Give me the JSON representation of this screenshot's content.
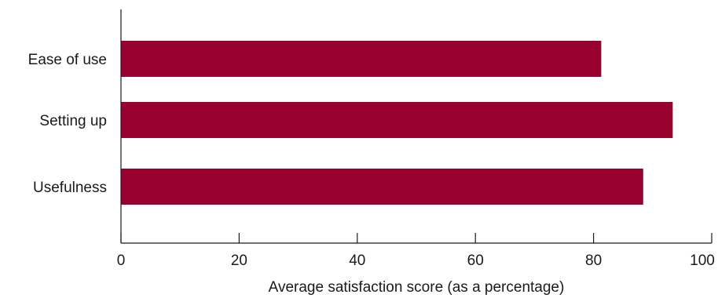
{
  "chart_data": {
    "type": "bar",
    "orientation": "horizontal",
    "categories": [
      "Ease of use",
      "Setting up",
      "Usefulness"
    ],
    "values": [
      81.3,
      93.4,
      88.4
    ],
    "title": "",
    "xlabel": "Average satisfaction score (as a percentage)",
    "ylabel": "",
    "xlim": [
      0,
      100
    ],
    "xticks": [
      0,
      20,
      40,
      60,
      80,
      100
    ],
    "bar_color": "#97002F",
    "grid": false,
    "legend": "none"
  }
}
